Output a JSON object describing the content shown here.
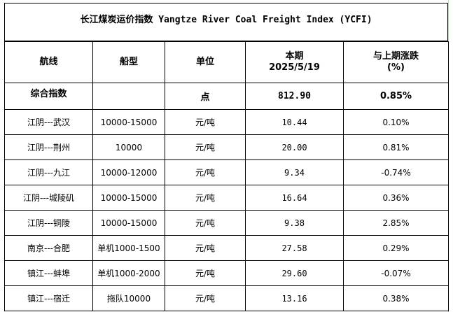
{
  "title": "长江煤炭运价指数 Yangtze River Coal Freight Index (YCFI)",
  "headers": {
    "route": "航线",
    "ship_type": "船型",
    "unit": "单位",
    "period_label": "本期",
    "period_date": "2025/5/19",
    "change_label": "与上期涨跌",
    "change_unit": "(%)"
  },
  "composite": {
    "label": "综合指数",
    "ship_type": "",
    "unit": "点",
    "value": "812.90",
    "change": "0.85%"
  },
  "rows": [
    {
      "route": "江阴---武汉",
      "ship_type": "10000-15000",
      "unit": "元/吨",
      "value": "10.44",
      "change": "0.10%"
    },
    {
      "route": "江阴---荆州",
      "ship_type": "10000",
      "unit": "元/吨",
      "value": "20.00",
      "change": "0.81%"
    },
    {
      "route": "江阴---九江",
      "ship_type": "10000-12000",
      "unit": "元/吨",
      "value": "9.34",
      "change": "-0.74%"
    },
    {
      "route": "江阴---城陵矶",
      "ship_type": "10000-15000",
      "unit": "元/吨",
      "value": "16.64",
      "change": "0.36%"
    },
    {
      "route": "江阴---铜陵",
      "ship_type": "10000-15000",
      "unit": "元/吨",
      "value": "9.38",
      "change": "2.85%"
    },
    {
      "route": "南京---合肥",
      "ship_type": "单机1000-1500",
      "unit": "元/吨",
      "value": "27.58",
      "change": "0.29%"
    },
    {
      "route": "镇江---蚌埠",
      "ship_type": "单机1000-2000",
      "unit": "元/吨",
      "value": "29.60",
      "change": "-0.07%"
    },
    {
      "route": "镇江---宿迁",
      "ship_type": "拖队10000",
      "unit": "元/吨",
      "value": "13.16",
      "change": "0.38%"
    }
  ]
}
